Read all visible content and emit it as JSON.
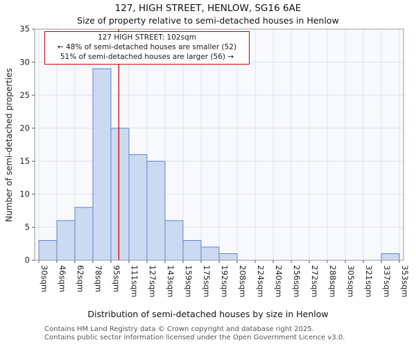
{
  "title": "127, HIGH STREET, HENLOW, SG16 6AE",
  "subtitle": "Size of property relative to semi-detached houses in Henlow",
  "annotation": {
    "line1": "127 HIGH STREET: 102sqm",
    "line2": "← 48% of semi-detached houses are smaller (52)",
    "line3": "51% of semi-detached houses are larger (56) →"
  },
  "footer": {
    "line1": "Contains HM Land Registry data © Crown copyright and database right 2025.",
    "line2": "Contains public sector information licensed under the Open Government Licence v3.0."
  },
  "chart_data": {
    "type": "bar",
    "title": "127, HIGH STREET, HENLOW, SG16 6AE",
    "subtitle": "Size of property relative to semi-detached houses in Henlow",
    "xlabel": "Distribution of semi-detached houses by size in Henlow",
    "ylabel": "Number of semi-detached properties",
    "tick_labels": [
      "30sqm",
      "46sqm",
      "62sqm",
      "78sqm",
      "95sqm",
      "111sqm",
      "127sqm",
      "143sqm",
      "159sqm",
      "175sqm",
      "192sqm",
      "208sqm",
      "224sqm",
      "240sqm",
      "256sqm",
      "272sqm",
      "288sqm",
      "305sqm",
      "321sqm",
      "337sqm",
      "353sqm"
    ],
    "bin_edges_sqm": [
      30,
      46,
      62,
      78,
      95,
      111,
      127,
      143,
      159,
      175,
      192,
      208,
      224,
      240,
      256,
      272,
      288,
      305,
      321,
      337,
      353
    ],
    "counts": [
      3,
      6,
      8,
      29,
      20,
      16,
      15,
      6,
      3,
      2,
      1,
      0,
      0,
      0,
      0,
      0,
      0,
      0,
      0,
      1
    ],
    "ylim": [
      0,
      35
    ],
    "ytick_step": 5,
    "marker_value_sqm": 102,
    "grid": true,
    "colors": {
      "bar_fill": "#ccdaf1",
      "bar_border": "#5b84c4",
      "grid": "#dce3f0",
      "plot_bg": "#f8f9fd",
      "marker": "#cc0000",
      "spine": "#999999",
      "tick": "#555555",
      "tick_text": "#222222"
    }
  }
}
